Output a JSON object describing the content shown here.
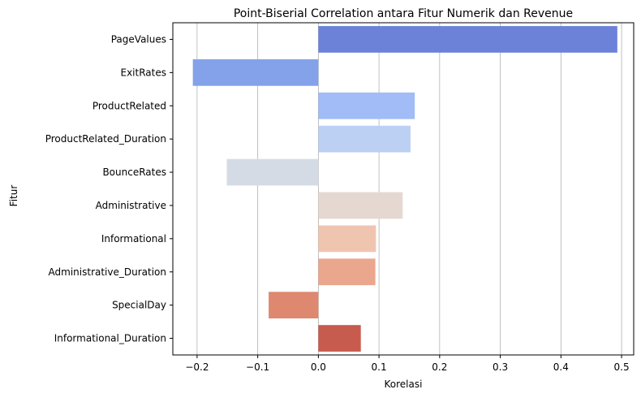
{
  "chart_data": {
    "type": "bar",
    "orientation": "horizontal",
    "title": "Point-Biserial Correlation antara Fitur Numerik dan Revenue",
    "xlabel": "Korelasi",
    "ylabel": "Fitur",
    "categories": [
      "PageValues",
      "ExitRates",
      "ProductRelated",
      "ProductRelated_Duration",
      "BounceRates",
      "Administrative",
      "Informational",
      "Administrative_Duration",
      "SpecialDay",
      "Informational_Duration"
    ],
    "values": [
      0.493,
      -0.207,
      0.159,
      0.152,
      -0.151,
      0.139,
      0.095,
      0.094,
      -0.082,
      0.07
    ],
    "colors": [
      "#6b82d8",
      "#84a2ea",
      "#a1bcf6",
      "#bcd0f4",
      "#d5dbe5",
      "#e5d8d1",
      "#f0c5b0",
      "#eaa78e",
      "#de8870",
      "#c75b4e"
    ],
    "xlim": [
      -0.24,
      0.52
    ],
    "xticks": [
      -0.2,
      -0.1,
      0.0,
      0.1,
      0.2,
      0.3,
      0.4,
      0.5
    ],
    "xtick_labels": [
      "−0.2",
      "−0.1",
      "0.0",
      "0.1",
      "0.2",
      "0.3",
      "0.4",
      "0.5"
    ],
    "grid": "x"
  }
}
